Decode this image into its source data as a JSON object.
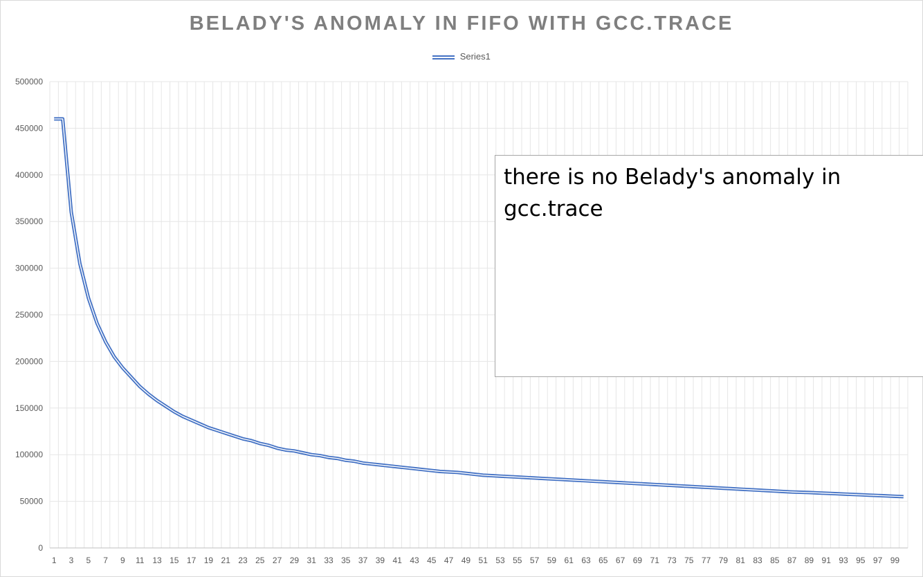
{
  "chart_data": {
    "type": "line",
    "title": "BELADY'S ANOMALY IN FIFO WITH GCC.TRACE",
    "legend_position": "top",
    "grid": true,
    "ylim": [
      0,
      500000
    ],
    "yticks": [
      0,
      50000,
      100000,
      150000,
      200000,
      250000,
      300000,
      350000,
      400000,
      450000,
      500000
    ],
    "ytick_labels": [
      "0",
      "50000",
      "100000",
      "150000",
      "200000",
      "250000",
      "300000",
      "350000",
      "400000",
      "450000",
      "500000"
    ],
    "xtick_labels": [
      "1",
      "3",
      "5",
      "7",
      "9",
      "11",
      "13",
      "15",
      "17",
      "19",
      "21",
      "23",
      "25",
      "27",
      "29",
      "31",
      "33",
      "35",
      "37",
      "39",
      "41",
      "43",
      "45",
      "47",
      "49",
      "51",
      "53",
      "55",
      "57",
      "59",
      "61",
      "63",
      "65",
      "67",
      "69",
      "71",
      "73",
      "75",
      "77",
      "79",
      "81",
      "83",
      "85",
      "87",
      "89",
      "91",
      "93",
      "95",
      "97",
      "99"
    ],
    "x": [
      1,
      2,
      3,
      4,
      5,
      6,
      7,
      8,
      9,
      10,
      11,
      12,
      13,
      14,
      15,
      16,
      17,
      18,
      19,
      20,
      21,
      22,
      23,
      24,
      25,
      26,
      27,
      28,
      29,
      30,
      31,
      32,
      33,
      34,
      35,
      36,
      37,
      38,
      39,
      40,
      41,
      42,
      43,
      44,
      45,
      46,
      47,
      48,
      49,
      50,
      51,
      52,
      53,
      54,
      55,
      56,
      57,
      58,
      59,
      60,
      61,
      62,
      63,
      64,
      65,
      66,
      67,
      68,
      69,
      70,
      71,
      72,
      73,
      74,
      75,
      76,
      77,
      78,
      79,
      80,
      81,
      82,
      83,
      84,
      85,
      86,
      87,
      88,
      89,
      90,
      91,
      92,
      93,
      94,
      95,
      96,
      97,
      98,
      99,
      100
    ],
    "series": [
      {
        "name": "Series1",
        "color": "#4472c4",
        "values": [
          460000,
          460000,
          360000,
          305000,
          268000,
          241000,
          221000,
          205000,
          193000,
          183000,
          173000,
          165000,
          158000,
          152000,
          146000,
          141000,
          137000,
          133000,
          129000,
          126000,
          123000,
          120000,
          117000,
          115000,
          112000,
          110000,
          107000,
          105000,
          104000,
          102000,
          100000,
          99000,
          97000,
          96000,
          94000,
          93000,
          91000,
          90000,
          89000,
          88000,
          87000,
          86000,
          85000,
          84000,
          83000,
          82000,
          81500,
          81000,
          80000,
          79000,
          78000,
          77500,
          77000,
          76500,
          76000,
          75500,
          75000,
          74500,
          74000,
          73500,
          73000,
          72500,
          72000,
          71500,
          71000,
          70500,
          70000,
          69500,
          69000,
          68500,
          68000,
          67500,
          67000,
          66500,
          66000,
          65500,
          65000,
          64500,
          64000,
          63500,
          63000,
          62500,
          62000,
          61500,
          61000,
          60500,
          60000,
          59700,
          59400,
          59000,
          58600,
          58200,
          57800,
          57400,
          57000,
          56600,
          56200,
          55800,
          55400,
          55000
        ]
      }
    ]
  },
  "annotation": {
    "line1": "there is no Belady's anomaly in",
    "line2": "gcc.trace"
  }
}
